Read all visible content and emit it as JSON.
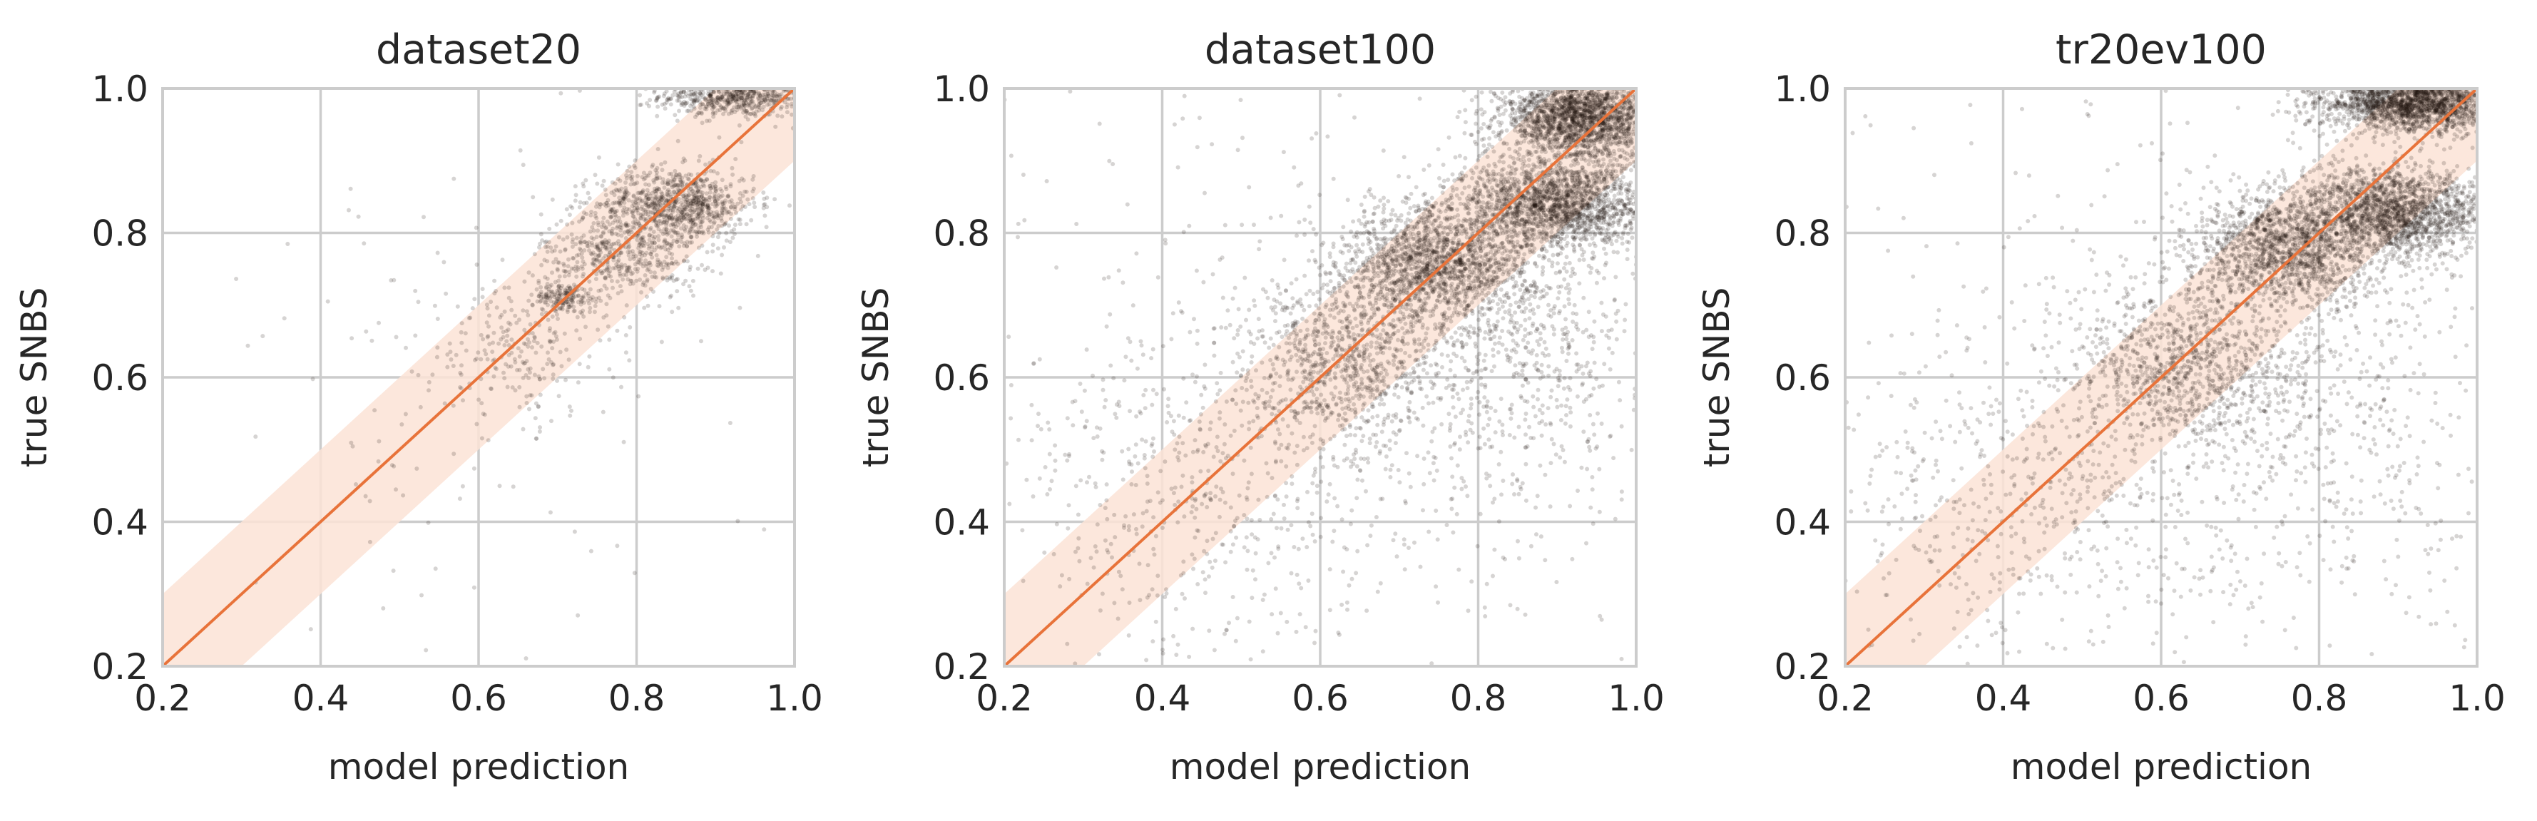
{
  "colors": {
    "diagonal_line": "#e8733a",
    "tolerance_band": "#fbe3d6",
    "points_dense": "#1e120b",
    "points_sparse": "#000000",
    "grid": "#cccccc",
    "text": "#262626"
  },
  "chart_data": [
    {
      "type": "scatter",
      "title": "dataset20",
      "xlabel": "model prediction",
      "ylabel": "true SNBS",
      "xlim": [
        0.2,
        1.0
      ],
      "ylim": [
        0.2,
        1.0
      ],
      "xticks": [
        "0.2",
        "0.4",
        "0.6",
        "0.8",
        "1.0"
      ],
      "yticks": [
        "0.2",
        "0.4",
        "0.6",
        "0.8",
        "1.0"
      ],
      "grid": true,
      "reference_line": {
        "from": [
          0.2,
          0.2
        ],
        "to": [
          1.0,
          1.0
        ]
      },
      "tolerance_band": 0.1,
      "clusters": [
        {
          "x": 0.93,
          "y": 0.99,
          "sx": 0.05,
          "sy": 0.015,
          "n": 700
        },
        {
          "x": 0.85,
          "y": 0.84,
          "sx": 0.05,
          "sy": 0.025,
          "n": 900
        },
        {
          "x": 0.78,
          "y": 0.77,
          "sx": 0.05,
          "sy": 0.03,
          "n": 500
        },
        {
          "x": 0.71,
          "y": 0.71,
          "sx": 0.02,
          "sy": 0.01,
          "n": 150
        },
        {
          "x": 0.65,
          "y": 0.64,
          "sx": 0.06,
          "sy": 0.05,
          "n": 250
        },
        {
          "x": 0.6,
          "y": 0.6,
          "sx": 0.2,
          "sy": 0.2,
          "n": 120
        }
      ]
    },
    {
      "type": "scatter",
      "title": "dataset100",
      "xlabel": "model prediction",
      "ylabel": "true SNBS",
      "xlim": [
        0.2,
        1.0
      ],
      "ylim": [
        0.2,
        1.0
      ],
      "xticks": [
        "0.2",
        "0.4",
        "0.6",
        "0.8",
        "1.0"
      ],
      "yticks": [
        "0.2",
        "0.4",
        "0.6",
        "0.8",
        "1.0"
      ],
      "grid": true,
      "reference_line": {
        "from": [
          0.2,
          0.2
        ],
        "to": [
          1.0,
          1.0
        ]
      },
      "tolerance_band": 0.1,
      "clusters": [
        {
          "x": 0.93,
          "y": 0.96,
          "sx": 0.05,
          "sy": 0.03,
          "n": 2200
        },
        {
          "x": 0.9,
          "y": 0.84,
          "sx": 0.06,
          "sy": 0.03,
          "n": 1800
        },
        {
          "x": 0.75,
          "y": 0.76,
          "sx": 0.06,
          "sy": 0.04,
          "n": 1600
        },
        {
          "x": 0.63,
          "y": 0.62,
          "sx": 0.06,
          "sy": 0.06,
          "n": 900
        },
        {
          "x": 0.85,
          "y": 0.65,
          "sx": 0.1,
          "sy": 0.12,
          "n": 900
        },
        {
          "x": 0.45,
          "y": 0.45,
          "sx": 0.12,
          "sy": 0.12,
          "n": 500
        },
        {
          "x": 0.6,
          "y": 0.6,
          "sx": 0.25,
          "sy": 0.25,
          "n": 400
        }
      ]
    },
    {
      "type": "scatter",
      "title": "tr20ev100",
      "xlabel": "model prediction",
      "ylabel": "true SNBS",
      "xlim": [
        0.2,
        1.0
      ],
      "ylim": [
        0.2,
        1.0
      ],
      "xticks": [
        "0.2",
        "0.4",
        "0.6",
        "0.8",
        "1.0"
      ],
      "yticks": [
        "0.2",
        "0.4",
        "0.6",
        "0.8",
        "1.0"
      ],
      "grid": true,
      "reference_line": {
        "from": [
          0.2,
          0.2
        ],
        "to": [
          1.0,
          1.0
        ]
      },
      "tolerance_band": 0.1,
      "clusters": [
        {
          "x": 0.92,
          "y": 0.98,
          "sx": 0.06,
          "sy": 0.02,
          "n": 2200
        },
        {
          "x": 0.9,
          "y": 0.83,
          "sx": 0.06,
          "sy": 0.03,
          "n": 1800
        },
        {
          "x": 0.76,
          "y": 0.78,
          "sx": 0.06,
          "sy": 0.04,
          "n": 1500
        },
        {
          "x": 0.62,
          "y": 0.62,
          "sx": 0.07,
          "sy": 0.06,
          "n": 900
        },
        {
          "x": 0.78,
          "y": 0.55,
          "sx": 0.12,
          "sy": 0.14,
          "n": 700
        },
        {
          "x": 0.42,
          "y": 0.42,
          "sx": 0.12,
          "sy": 0.12,
          "n": 500
        },
        {
          "x": 0.6,
          "y": 0.6,
          "sx": 0.25,
          "sy": 0.25,
          "n": 400
        }
      ]
    }
  ]
}
